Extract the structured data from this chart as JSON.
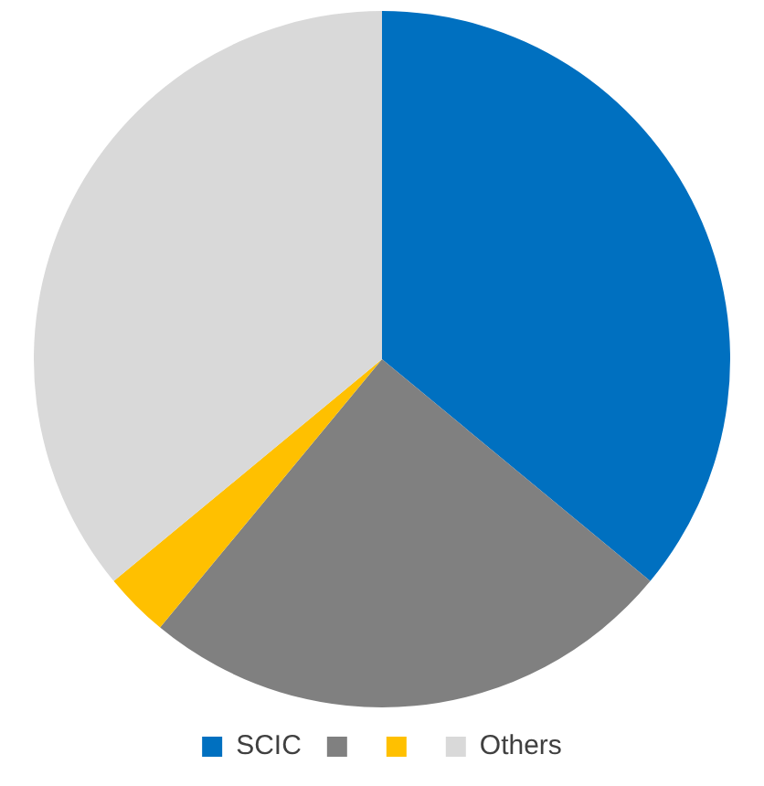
{
  "chart_data": {
    "type": "pie",
    "categories": [
      "SCIC",
      null,
      null,
      "Others"
    ],
    "values": [
      36,
      25,
      3,
      36
    ],
    "colors": [
      "#0070c0",
      "#808080",
      "#ffc000",
      "#d9d9d9"
    ],
    "legend": "bottom"
  }
}
